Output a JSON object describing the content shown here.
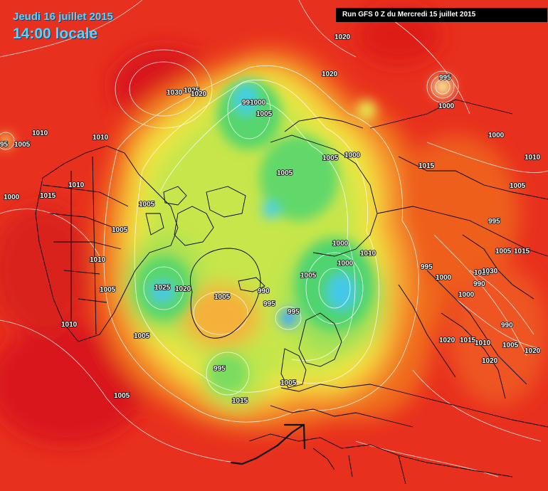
{
  "header": {
    "date": "Jeudi 16 juillet 2015",
    "time": "14:00 locale",
    "run": "Run GFS 0 Z du Mercredi 15 juillet 2015"
  },
  "colors": {
    "background": "#e8301e",
    "high": "#e11a14",
    "orange": "#f06a1e",
    "orange_light": "#f5a030",
    "yellow": "#f5e840",
    "yellow_green": "#c8e84a",
    "green": "#5ad86a",
    "cyan": "#40d0e0",
    "blue": "#3fa8ff"
  },
  "isobar_labels": [
    {
      "text": "1020"
    },
    {
      "text": "1020"
    },
    {
      "text": "995"
    },
    {
      "text": "1030"
    },
    {
      "text": "1025"
    },
    {
      "text": "1020"
    },
    {
      "text": "991000"
    },
    {
      "text": "1005"
    },
    {
      "text": "1000"
    },
    {
      "text": "1010"
    },
    {
      "text": "95"
    },
    {
      "text": "1005"
    },
    {
      "text": "1010"
    },
    {
      "text": "1000"
    },
    {
      "text": "1005"
    },
    {
      "text": "1000"
    },
    {
      "text": "1010"
    },
    {
      "text": "1000"
    },
    {
      "text": "1015"
    },
    {
      "text": "1010"
    },
    {
      "text": "1015"
    },
    {
      "text": "1005"
    },
    {
      "text": "1005"
    },
    {
      "text": "1005"
    },
    {
      "text": "995"
    },
    {
      "text": "1005"
    },
    {
      "text": "1000"
    },
    {
      "text": "1010"
    },
    {
      "text": "1010"
    },
    {
      "text": "1005"
    },
    {
      "text": "1015"
    },
    {
      "text": "1000"
    },
    {
      "text": "995"
    },
    {
      "text": "1005"
    },
    {
      "text": "1020"
    },
    {
      "text": "1000"
    },
    {
      "text": "1005"
    },
    {
      "text": "1030"
    },
    {
      "text": "1025"
    },
    {
      "text": "1020"
    },
    {
      "text": "1005"
    },
    {
      "text": "990"
    },
    {
      "text": "995"
    },
    {
      "text": "1000"
    },
    {
      "text": "990"
    },
    {
      "text": "995"
    },
    {
      "text": "990"
    },
    {
      "text": "1010"
    },
    {
      "text": "1005"
    },
    {
      "text": "1015"
    },
    {
      "text": "1020"
    },
    {
      "text": "1010"
    },
    {
      "text": "1005"
    },
    {
      "text": "1020"
    },
    {
      "text": "1020"
    },
    {
      "text": "995"
    },
    {
      "text": "1005"
    },
    {
      "text": "1005"
    },
    {
      "text": "1015"
    }
  ]
}
